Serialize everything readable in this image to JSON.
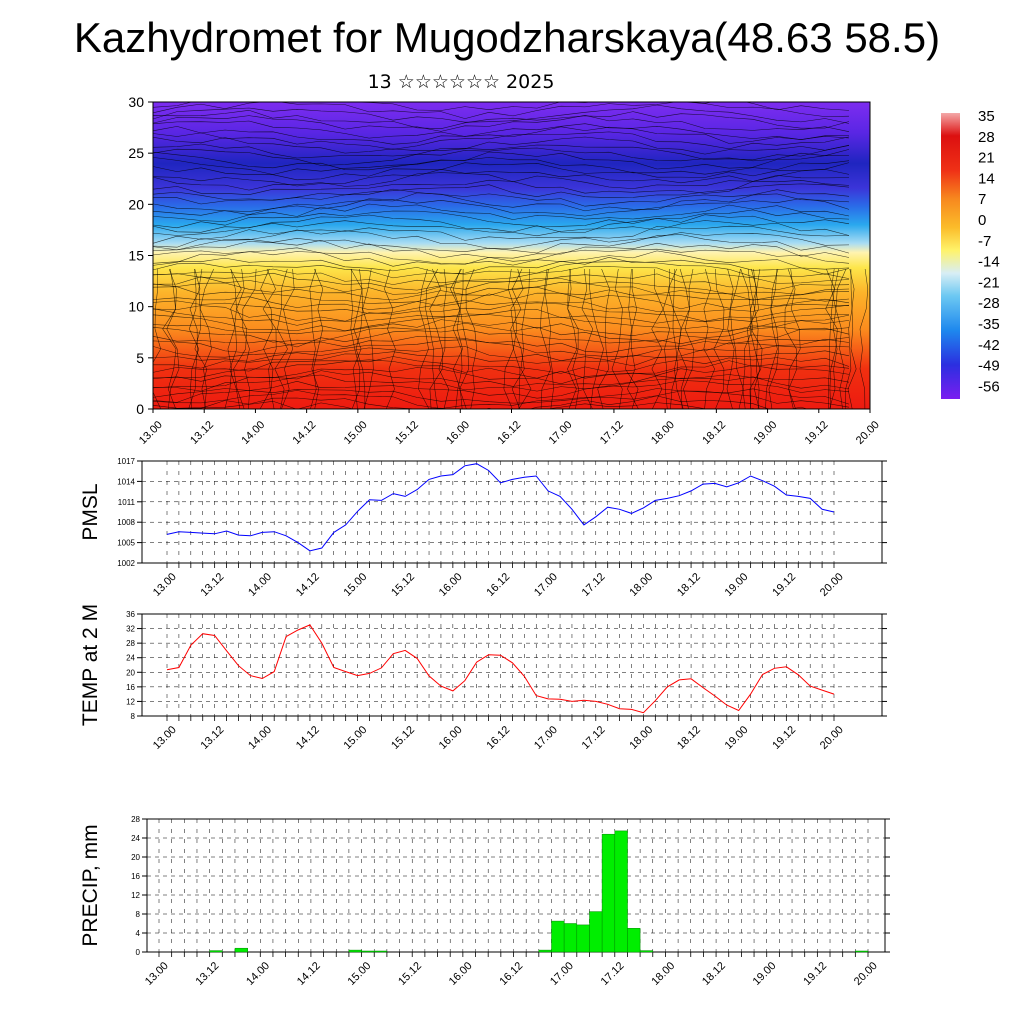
{
  "title": "Kazhydromet for Mugodzharskaya(48.63 58.5)",
  "subtitle": "13 ☆☆☆☆☆☆ 2025",
  "time_labels": [
    "13.00",
    "13.12",
    "14.00",
    "14.12",
    "15.00",
    "15.12",
    "16.00",
    "16.12",
    "17.00",
    "17.12",
    "18.00",
    "18.12",
    "19.00",
    "19.12",
    "20.00"
  ],
  "colors": {
    "pmsl_line": "#0000ff",
    "temp_line": "#ff0000",
    "precip_bar": "#00ee00",
    "grid": "#000000"
  },
  "chart_data": [
    {
      "type": "heatmap",
      "title": "",
      "ylim": [
        0,
        30
      ],
      "y_ticks": [
        "0",
        "5",
        "10",
        "15",
        "20",
        "25",
        "30"
      ],
      "colorbar_labels": [
        "35",
        "28",
        "21",
        "14",
        "7",
        "0",
        "-7",
        "-14",
        "-21",
        "-28",
        "-35",
        "-42",
        "-49",
        "-56"
      ],
      "description_values": {
        "surface_temp_range": [
          14,
          35
        ],
        "upper_temp_range": [
          -60,
          -45
        ]
      }
    },
    {
      "type": "line",
      "ylabel": "PMSL",
      "ylim": [
        1002,
        1017
      ],
      "y_ticks": [
        "1002",
        "1005",
        "1008",
        "1011",
        "1014",
        "1017"
      ],
      "series": [
        {
          "values": [
            1006.2,
            1006.6,
            1006.5,
            1006.4,
            1006.3,
            1006.7,
            1006.1,
            1006.0,
            1006.5,
            1006.6,
            1006.0,
            1005.0,
            1003.8,
            1004.2,
            1006.5,
            1007.6,
            1009.6,
            1011.3,
            1011.2,
            1012.2,
            1011.8,
            1012.8,
            1014.3,
            1014.8,
            1015.0,
            1016.3,
            1016.6,
            1015.6,
            1013.8,
            1014.3,
            1014.6,
            1014.8,
            1012.6,
            1011.8,
            1009.9,
            1007.6,
            1008.8,
            1010.2,
            1009.9,
            1009.3,
            1010.1,
            1011.2,
            1011.5,
            1011.9,
            1012.6,
            1013.6,
            1013.7,
            1013.2,
            1013.8,
            1014.8,
            1014.1,
            1013.3,
            1012.0,
            1011.8,
            1011.5,
            1009.9,
            1009.5
          ]
        }
      ]
    },
    {
      "type": "line",
      "ylabel": "TEMP at 2 M",
      "ylim": [
        8,
        36
      ],
      "y_ticks": [
        "8",
        "12",
        "16",
        "20",
        "24",
        "28",
        "32",
        "36"
      ],
      "series": [
        {
          "values": [
            20.7,
            21.3,
            27.4,
            30.6,
            30.1,
            25.9,
            21.8,
            19.1,
            18.3,
            20.2,
            29.8,
            31.6,
            33.0,
            28.0,
            21.3,
            20.2,
            19.1,
            19.7,
            21.2,
            25.1,
            26.0,
            23.8,
            19.0,
            16.2,
            14.9,
            17.7,
            22.8,
            24.8,
            24.7,
            22.6,
            18.9,
            13.6,
            12.7,
            12.6,
            12.0,
            12.3,
            12.0,
            11.2,
            10.0,
            9.8,
            8.9,
            12.2,
            16.0,
            17.9,
            18.2,
            15.8,
            13.5,
            11.0,
            9.5,
            14.0,
            19.4,
            21.1,
            21.5,
            19.3,
            16.2,
            15.1,
            14.0
          ]
        }
      ]
    },
    {
      "type": "bar",
      "ylabel": "PRECIP, mm",
      "ylim": [
        0,
        28
      ],
      "y_ticks": [
        "0",
        "4",
        "8",
        "12",
        "16",
        "20",
        "24",
        "28"
      ],
      "values": [
        0,
        0,
        0,
        0,
        0.3,
        0,
        0.8,
        0,
        0,
        0,
        0,
        0,
        0,
        0,
        0,
        0.4,
        0.2,
        0.2,
        0,
        0,
        0,
        0,
        0,
        0,
        0,
        0,
        0,
        0,
        0,
        0,
        0.4,
        6.5,
        6.0,
        5.7,
        8.5,
        24.8,
        25.5,
        5.0,
        0.3,
        0,
        0,
        0,
        0,
        0,
        0,
        0,
        0,
        0,
        0,
        0,
        0,
        0,
        0,
        0,
        0,
        0.2
      ]
    }
  ]
}
